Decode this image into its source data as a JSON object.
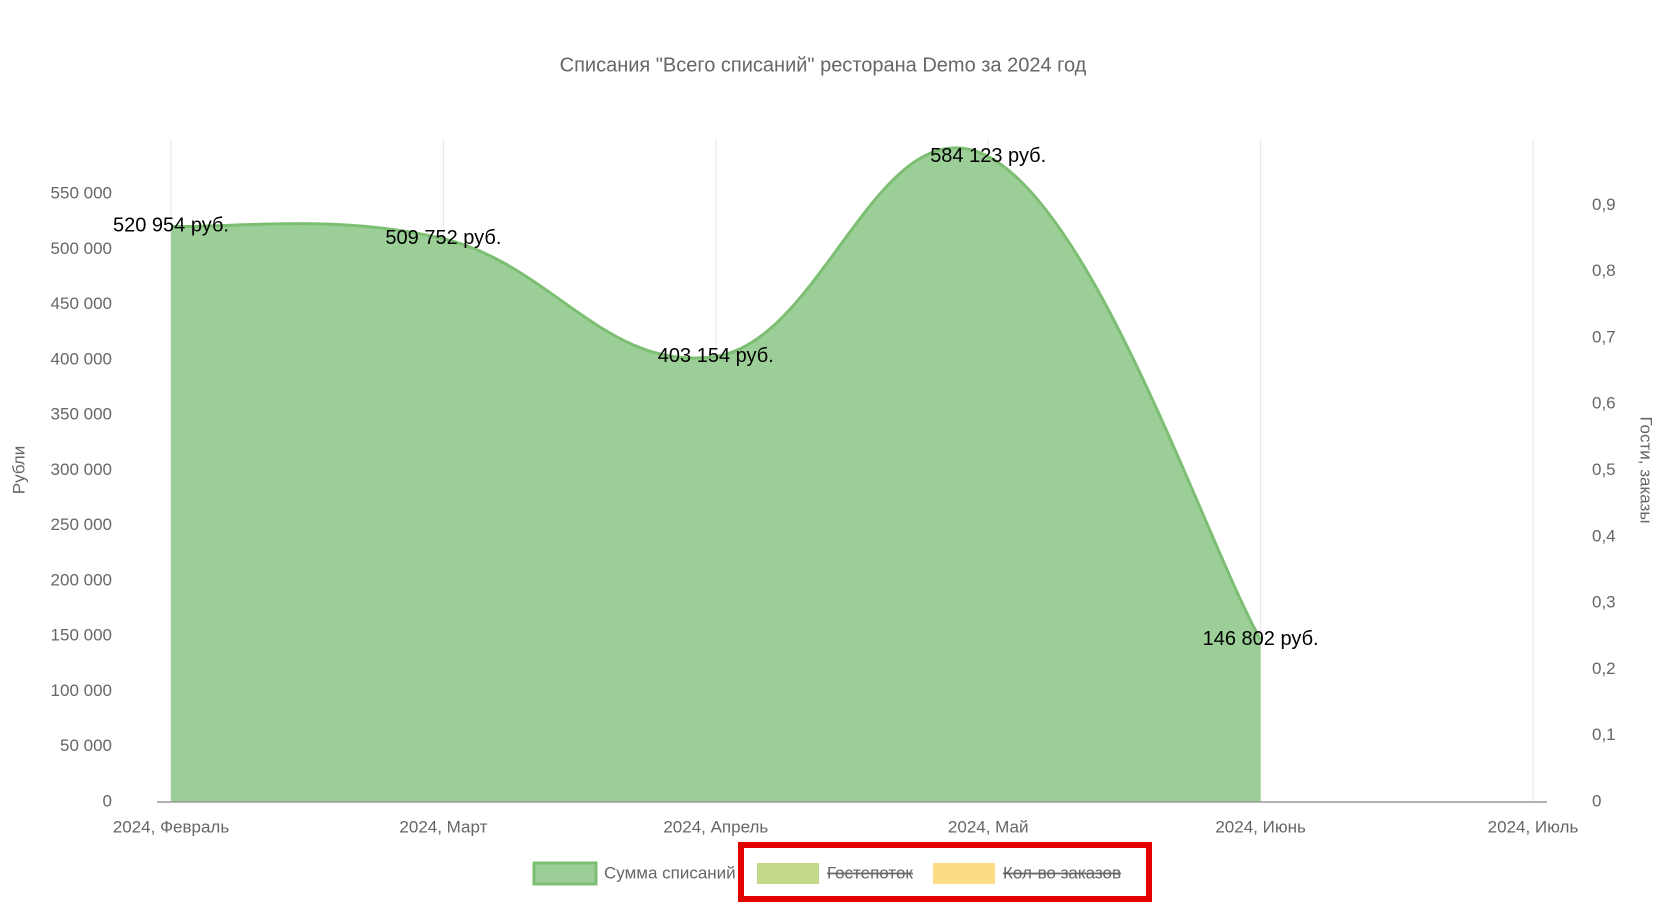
{
  "chart_data": {
    "type": "area",
    "title": "Списания \"Всего списаний\" ресторана Demo за 2024 год",
    "y_label": "Рубли",
    "y2_label": "Гости, заказы",
    "categories": [
      "2024, Февраль",
      "2024, Март",
      "2024, Апрель",
      "2024, Май",
      "2024, Июнь",
      "2024, Июль"
    ],
    "series": [
      {
        "name": "Сумма списаний",
        "color": "#7dbf72",
        "fill": "#9ccf98",
        "values": [
          520954,
          509752,
          403154,
          584123,
          146802,
          null
        ],
        "value_labels": [
          "520 954 руб.",
          "509 752 руб.",
          "403 154 руб.",
          "584 123 руб.",
          "146 802 руб.",
          null
        ]
      },
      {
        "name": "Гостепоток",
        "color": "#c5d98a",
        "hidden": true,
        "axis": "y2",
        "values": [
          null,
          null,
          null,
          null,
          null,
          null
        ]
      },
      {
        "name": "Кол-во заказов",
        "color": "#fddc86",
        "hidden": true,
        "axis": "y2",
        "values": [
          null,
          null,
          null,
          null,
          null,
          null
        ]
      }
    ],
    "ylim": [
      0,
      600000
    ],
    "yticks": [
      0,
      {
        "value": 50000,
        "label": "50 000"
      },
      {
        "value": 100000,
        "label": "100 000"
      },
      {
        "value": 150000,
        "label": "150 000"
      },
      {
        "value": 200000,
        "label": "200 000"
      },
      {
        "value": 250000,
        "label": "250 000"
      },
      {
        "value": 300000,
        "label": "300 000"
      },
      {
        "value": 350000,
        "label": "350 000"
      },
      {
        "value": 400000,
        "label": "400 000"
      },
      {
        "value": 450000,
        "label": "450 000"
      },
      {
        "value": 500000,
        "label": "500 000"
      },
      {
        "value": 550000,
        "label": "550 000"
      }
    ],
    "y2lim": [
      0,
      1
    ],
    "y2ticks": [
      0,
      {
        "value": 0.1,
        "label": "0,1"
      },
      {
        "value": 0.2,
        "label": "0,2"
      },
      {
        "value": 0.3,
        "label": "0,3"
      },
      {
        "value": 0.4,
        "label": "0,4"
      },
      {
        "value": 0.5,
        "label": "0,5"
      },
      {
        "value": 0.6,
        "label": "0,6"
      },
      {
        "value": 0.7,
        "label": "0,7"
      },
      {
        "value": 0.8,
        "label": "0,8"
      },
      {
        "value": 0.9,
        "label": "0,9"
      }
    ],
    "grid": "x"
  }
}
